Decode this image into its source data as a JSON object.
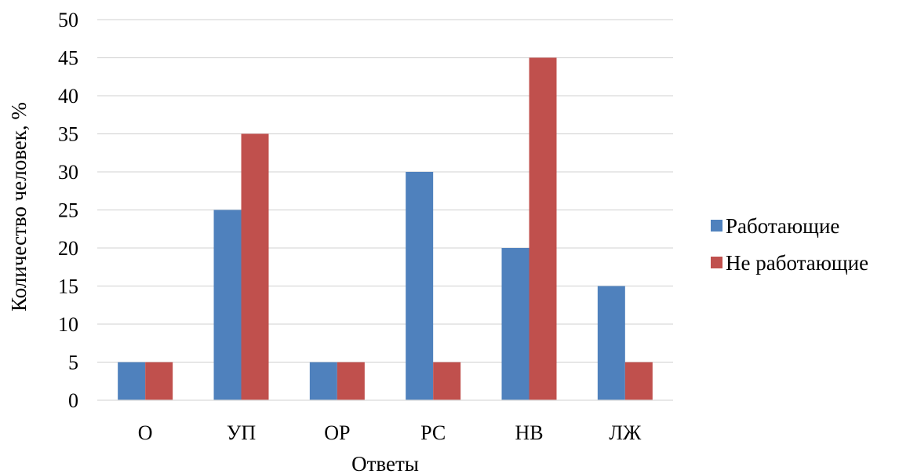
{
  "chart_data": {
    "type": "bar",
    "title": "",
    "xlabel": "Ответы",
    "ylabel": "Количество человек, %",
    "ylim": [
      0,
      50
    ],
    "ytick_step": 5,
    "grid": true,
    "legend_position": "right",
    "categories": [
      "О",
      "УП",
      "ОР",
      "РС",
      "НВ",
      "ЛЖ"
    ],
    "series": [
      {
        "name": "Работающие",
        "color": "#4F81BD",
        "values": [
          5,
          25,
          5,
          30,
          20,
          15
        ]
      },
      {
        "name": "Не работающие",
        "color": "#C0504D",
        "values": [
          5,
          35,
          5,
          5,
          45,
          5
        ]
      }
    ]
  }
}
